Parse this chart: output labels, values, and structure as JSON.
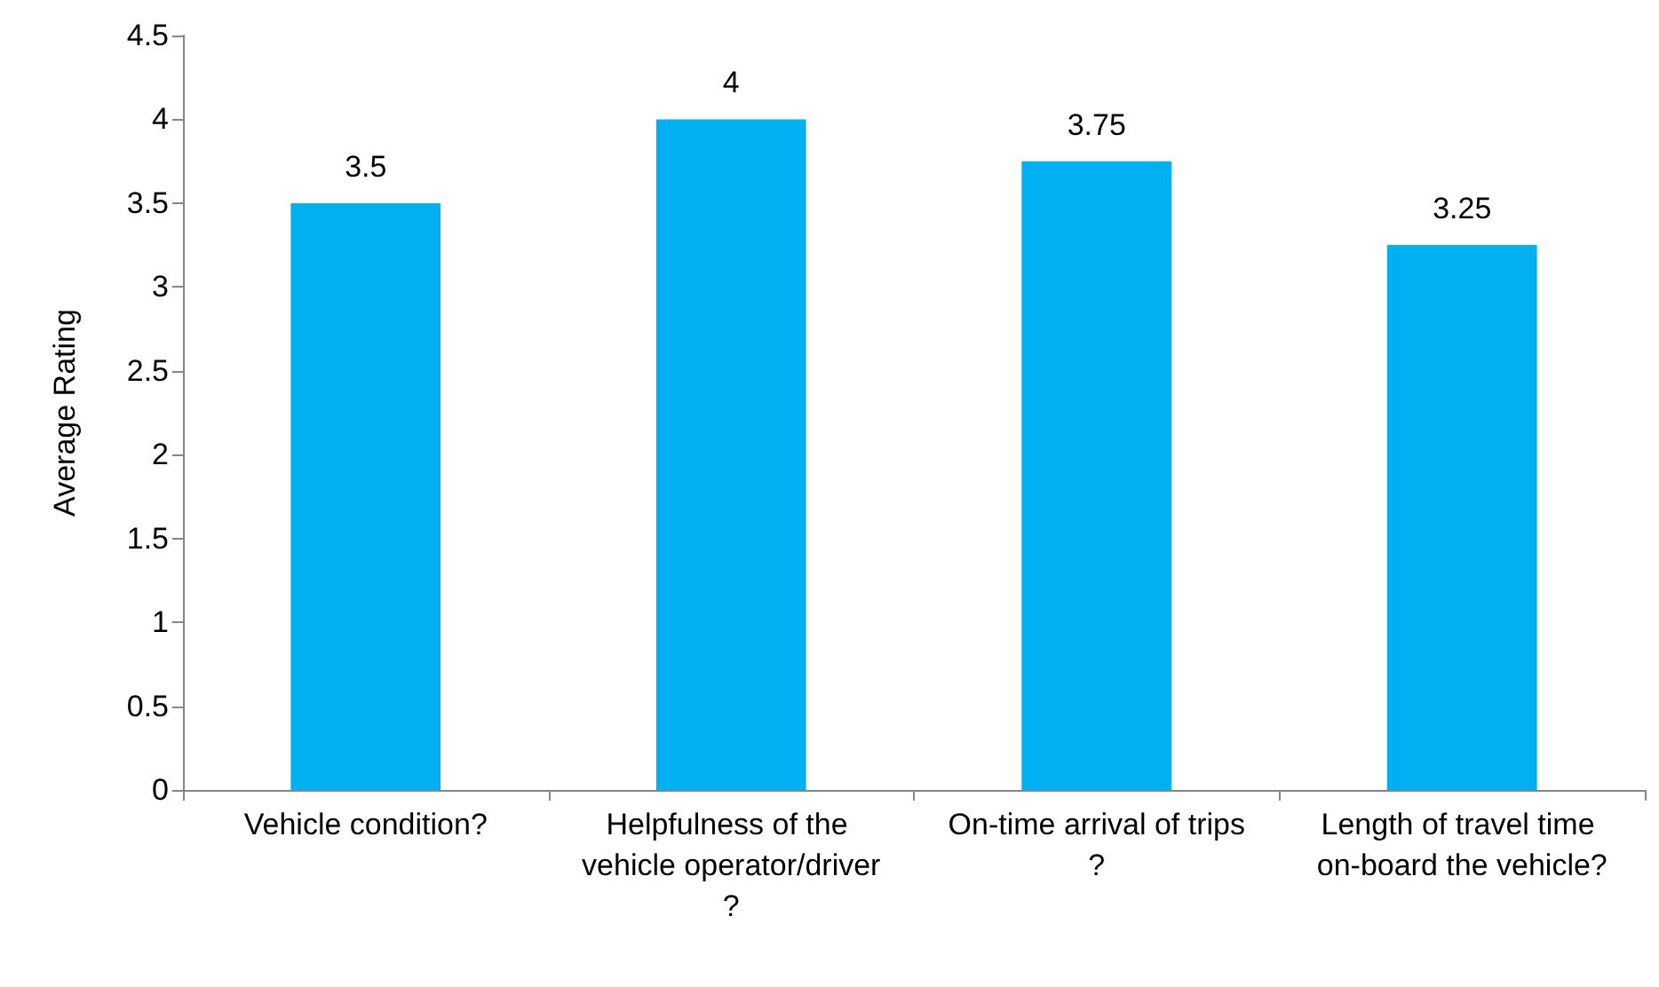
{
  "chart_data": {
    "type": "bar",
    "ylabel": "Average Rating",
    "categories": [
      "Vehicle condition?",
      "Helpfulness of the vehicle operator/driver?",
      "On-time arrival of trips?",
      "Length of travel time on-board the vehicle?"
    ],
    "values": [
      3.5,
      4,
      3.75,
      3.25
    ],
    "color": "#00b0f0",
    "ylim": [
      0,
      4.5
    ],
    "yticks": [
      0,
      0.5,
      1,
      1.5,
      2,
      2.5,
      3,
      3.5,
      4,
      4.5
    ],
    "data_labels": true
  }
}
